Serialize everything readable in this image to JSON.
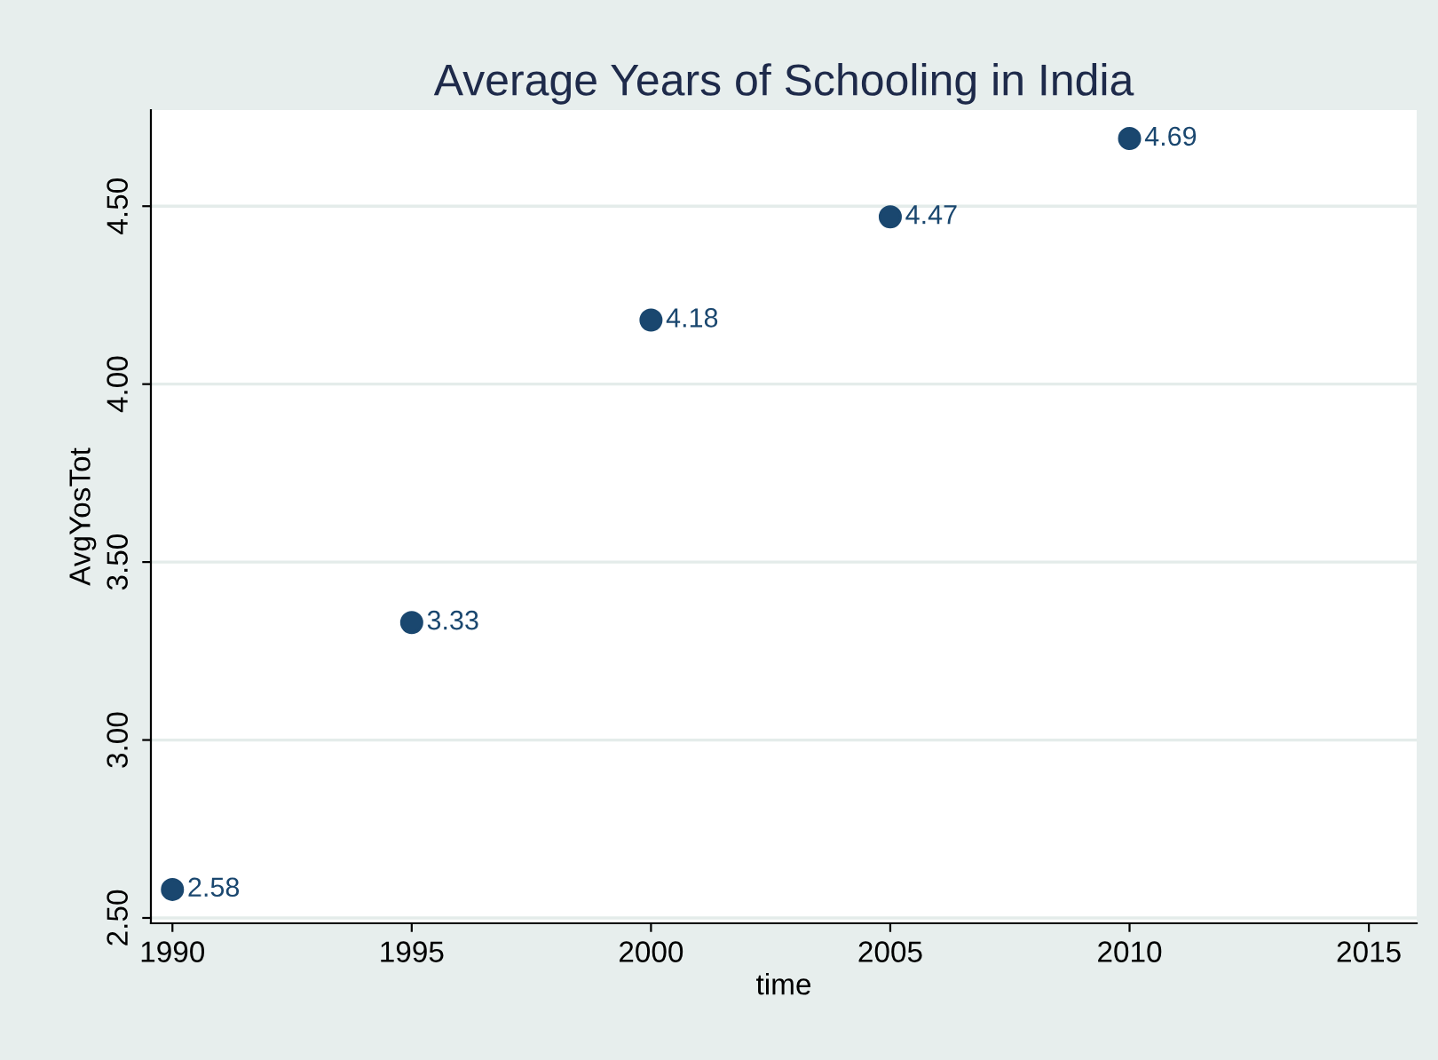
{
  "chart_data": {
    "type": "scatter",
    "title": "Average Years of Schooling in India",
    "xlabel": "time",
    "ylabel": "AvgYosTot",
    "x": [
      1990,
      1995,
      2000,
      2005,
      2010
    ],
    "series": [
      {
        "color": "#1a476f",
        "values": [
          2.58,
          3.33,
          4.18,
          4.47,
          4.69
        ]
      }
    ],
    "data_labels": true,
    "marker": "circle",
    "xlim": [
      1989.55,
      2016
    ],
    "xticks": [
      1990,
      1995,
      2000,
      2005,
      2010,
      2015
    ],
    "ylim": [
      2.485,
      4.77
    ],
    "yticks": [
      {
        "value": 2.5,
        "label": "2.50"
      },
      {
        "value": 3.0,
        "label": "3.00"
      },
      {
        "value": 3.5,
        "label": "3.50"
      },
      {
        "value": 4.0,
        "label": "4.00"
      },
      {
        "value": 4.5,
        "label": "4.50"
      }
    ],
    "grid": "y"
  }
}
